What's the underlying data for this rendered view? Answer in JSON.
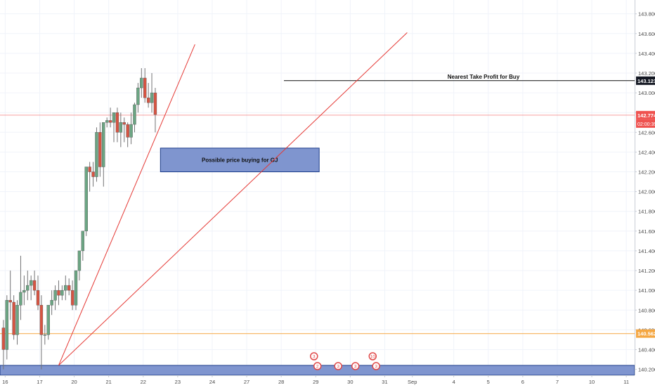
{
  "chart_data": {
    "type": "candlestick",
    "title": "",
    "xlabel": "",
    "ylabel": "",
    "ylim": [
      140.14,
      143.94
    ],
    "y_ticks": [
      "140.200",
      "140.400",
      "140.600",
      "140.800",
      "141.000",
      "141.200",
      "141.400",
      "141.600",
      "141.800",
      "142.000",
      "142.200",
      "142.400",
      "142.600",
      "142.800",
      "143.000",
      "143.200",
      "143.400",
      "143.600",
      "143.800"
    ],
    "x_ticks": [
      {
        "label": "16",
        "pos": 0.5
      },
      {
        "label": "17",
        "pos": 10.5
      },
      {
        "label": "20",
        "pos": 20.5
      },
      {
        "label": "21",
        "pos": 30.5
      },
      {
        "label": "22",
        "pos": 40.5
      },
      {
        "label": "23",
        "pos": 50.5
      },
      {
        "label": "24",
        "pos": 60.5
      },
      {
        "label": "27",
        "pos": 70.5
      },
      {
        "label": "28",
        "pos": 80.5
      },
      {
        "label": "29",
        "pos": 90.5
      },
      {
        "label": "30",
        "pos": 100.5
      },
      {
        "label": "31",
        "pos": 110.5
      },
      {
        "label": "Sep",
        "pos": 118.5
      },
      {
        "label": "4",
        "pos": 130.5
      },
      {
        "label": "5",
        "pos": 140.5
      },
      {
        "label": "6",
        "pos": 150.5
      },
      {
        "label": "7",
        "pos": 160.5
      },
      {
        "label": "10",
        "pos": 170.5
      },
      {
        "label": "11",
        "pos": 180.5
      }
    ],
    "candles": [
      [
        140.62,
        140.7,
        140.2,
        140.4
      ],
      [
        140.4,
        140.95,
        140.3,
        140.9
      ],
      [
        140.9,
        141.2,
        140.7,
        140.88
      ],
      [
        140.88,
        140.95,
        140.5,
        140.55
      ],
      [
        140.55,
        140.9,
        140.45,
        140.85
      ],
      [
        140.85,
        141.35,
        140.7,
        140.98
      ],
      [
        140.98,
        141.15,
        140.85,
        141.0
      ],
      [
        141.0,
        141.2,
        140.9,
        141.05
      ],
      [
        141.05,
        141.15,
        140.9,
        141.1
      ],
      [
        141.1,
        141.2,
        140.95,
        141.0
      ],
      [
        141.0,
        141.15,
        140.8,
        140.85
      ],
      [
        140.85,
        140.95,
        140.2,
        140.55
      ],
      [
        140.55,
        140.65,
        140.45,
        140.55
      ],
      [
        140.55,
        140.85,
        140.5,
        140.85
      ],
      [
        140.85,
        141.0,
        140.75,
        140.9
      ],
      [
        140.9,
        141.05,
        140.8,
        141.0
      ],
      [
        141.0,
        141.1,
        140.85,
        140.95
      ],
      [
        140.95,
        141.05,
        140.9,
        141.0
      ],
      [
        141.0,
        141.15,
        140.9,
        141.05
      ],
      [
        141.05,
        141.12,
        140.95,
        141.0
      ],
      [
        141.0,
        141.1,
        140.8,
        140.85
      ],
      [
        140.85,
        141.2,
        140.8,
        141.2
      ],
      [
        141.2,
        141.4,
        141.1,
        141.4
      ],
      [
        141.4,
        141.6,
        141.3,
        141.6
      ],
      [
        141.6,
        142.25,
        141.55,
        142.25
      ],
      [
        142.25,
        142.3,
        142.0,
        142.2
      ],
      [
        142.2,
        142.3,
        142.05,
        142.15
      ],
      [
        142.15,
        142.65,
        142.1,
        142.6
      ],
      [
        142.6,
        142.7,
        142.15,
        142.25
      ],
      [
        142.25,
        142.7,
        142.05,
        142.7
      ],
      [
        142.7,
        142.75,
        142.65,
        142.72
      ],
      [
        142.72,
        142.85,
        142.65,
        142.7
      ],
      [
        142.7,
        142.8,
        142.5,
        142.8
      ],
      [
        142.8,
        142.85,
        142.5,
        142.6
      ],
      [
        142.6,
        142.8,
        142.45,
        142.7
      ],
      [
        142.7,
        142.75,
        142.5,
        142.68
      ],
      [
        142.68,
        142.7,
        142.45,
        142.55
      ],
      [
        142.55,
        142.8,
        142.48,
        142.68
      ],
      [
        142.68,
        142.9,
        142.6,
        142.88
      ],
      [
        142.88,
        143.1,
        142.8,
        143.05
      ],
      [
        143.05,
        143.25,
        142.95,
        143.15
      ],
      [
        143.15,
        143.25,
        142.9,
        142.95
      ],
      [
        142.95,
        143.1,
        142.85,
        142.9
      ],
      [
        142.9,
        143.2,
        142.8,
        143.0
      ],
      [
        143.0,
        143.05,
        142.6,
        142.78
      ]
    ],
    "current_price": {
      "value": 142.774,
      "label": "142.774",
      "countdown": "02:00:35",
      "color": "#ef5350"
    },
    "take_profit": {
      "value": 143.123,
      "label": "143.123",
      "text": "Nearest Take Profit for Buy"
    },
    "support_line": {
      "value": 140.562,
      "label": "140.562",
      "color": "#f5a742"
    },
    "buy_zone": {
      "x1": 45.5,
      "x2": 91.5,
      "y1": 142.2,
      "y2": 142.44,
      "text": "Possible price buying for GJ"
    },
    "bottom_zone": {
      "y1": 140.14,
      "y2": 140.24
    },
    "trendlines": [
      {
        "x1": 16,
        "y1": 140.24,
        "x2": 55.5,
        "y2": 143.49
      },
      {
        "x1": 16,
        "y1": 140.24,
        "x2": 117,
        "y2": 143.61
      }
    ],
    "event_markers": [
      {
        "x": 90,
        "row": "top",
        "label": "3"
      },
      {
        "x": 91,
        "row": "bottom",
        "label": "2"
      },
      {
        "x": 97,
        "row": "bottom",
        "label": "3"
      },
      {
        "x": 102,
        "row": "bottom",
        "label": "3"
      },
      {
        "x": 107,
        "row": "top",
        "label": "10"
      },
      {
        "x": 108,
        "row": "bottom",
        "label": "3"
      }
    ],
    "colors": {
      "up": "#6ba583",
      "down": "#d75442",
      "wick": "#737375",
      "zone_fill": "#7f95cf",
      "zone_border": "#1d3d8a",
      "trendline": "#e53935"
    }
  }
}
